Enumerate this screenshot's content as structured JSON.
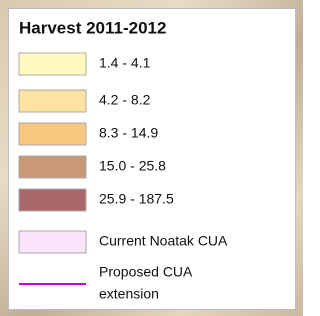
{
  "legend": {
    "title": "Harvest 2011-2012",
    "items": [
      {
        "label": "1.4 - 4.1",
        "color": "#fffbbe",
        "kind": "fill"
      },
      {
        "label": "4.2 - 8.2",
        "color": "#fde3a0",
        "kind": "fill"
      },
      {
        "label": "8.3 - 14.9",
        "color": "#f6c880",
        "kind": "fill"
      },
      {
        "label": "15.0 - 25.8",
        "color": "#c99875",
        "kind": "fill"
      },
      {
        "label": "25.9 - 187.5",
        "color": "#a8686a",
        "kind": "fill"
      },
      {
        "label": "Current Noatak CUA",
        "color": "#f9e4fb",
        "kind": "fill"
      },
      {
        "label": [
          "Proposed CUA",
          "extension"
        ],
        "color": "#c000e0",
        "kind": "line"
      }
    ]
  }
}
